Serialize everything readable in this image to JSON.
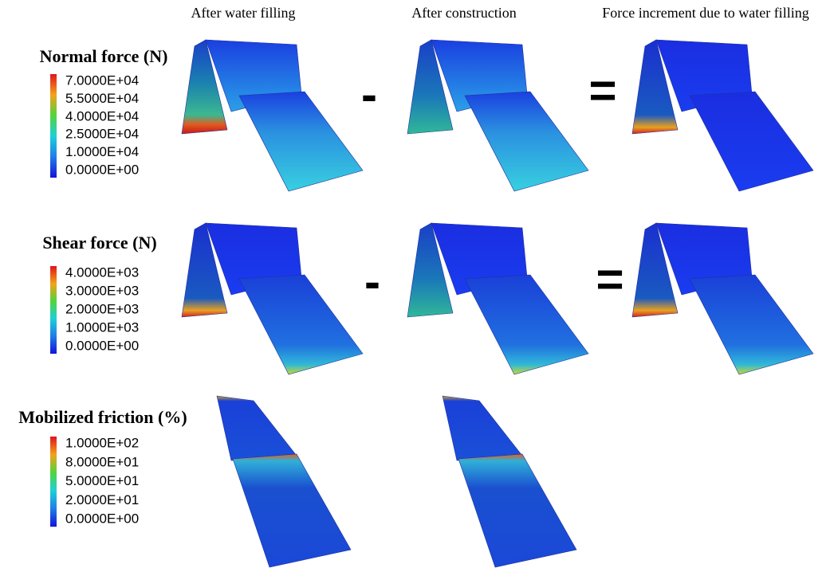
{
  "columns": [
    "After water filling",
    "After construction",
    "Force increment due to water filling"
  ],
  "rows": [
    {
      "title": "Normal force (N)",
      "legend": [
        "7.0000E+04",
        "5.5000E+04",
        "4.0000E+04",
        "2.5000E+04",
        "1.0000E+04",
        "0.0000E+00"
      ],
      "operators": [
        "-",
        "="
      ]
    },
    {
      "title": "Shear force (N)",
      "legend": [
        "4.0000E+03",
        "3.0000E+03",
        "2.0000E+03",
        "1.0000E+03",
        "0.0000E+00"
      ],
      "operators": [
        "-",
        "="
      ]
    },
    {
      "title": "Mobilized friction (%)",
      "legend": [
        "1.0000E+02",
        "8.0000E+01",
        "5.0000E+01",
        "2.0000E+01",
        "0.0000E+00"
      ]
    }
  ]
}
